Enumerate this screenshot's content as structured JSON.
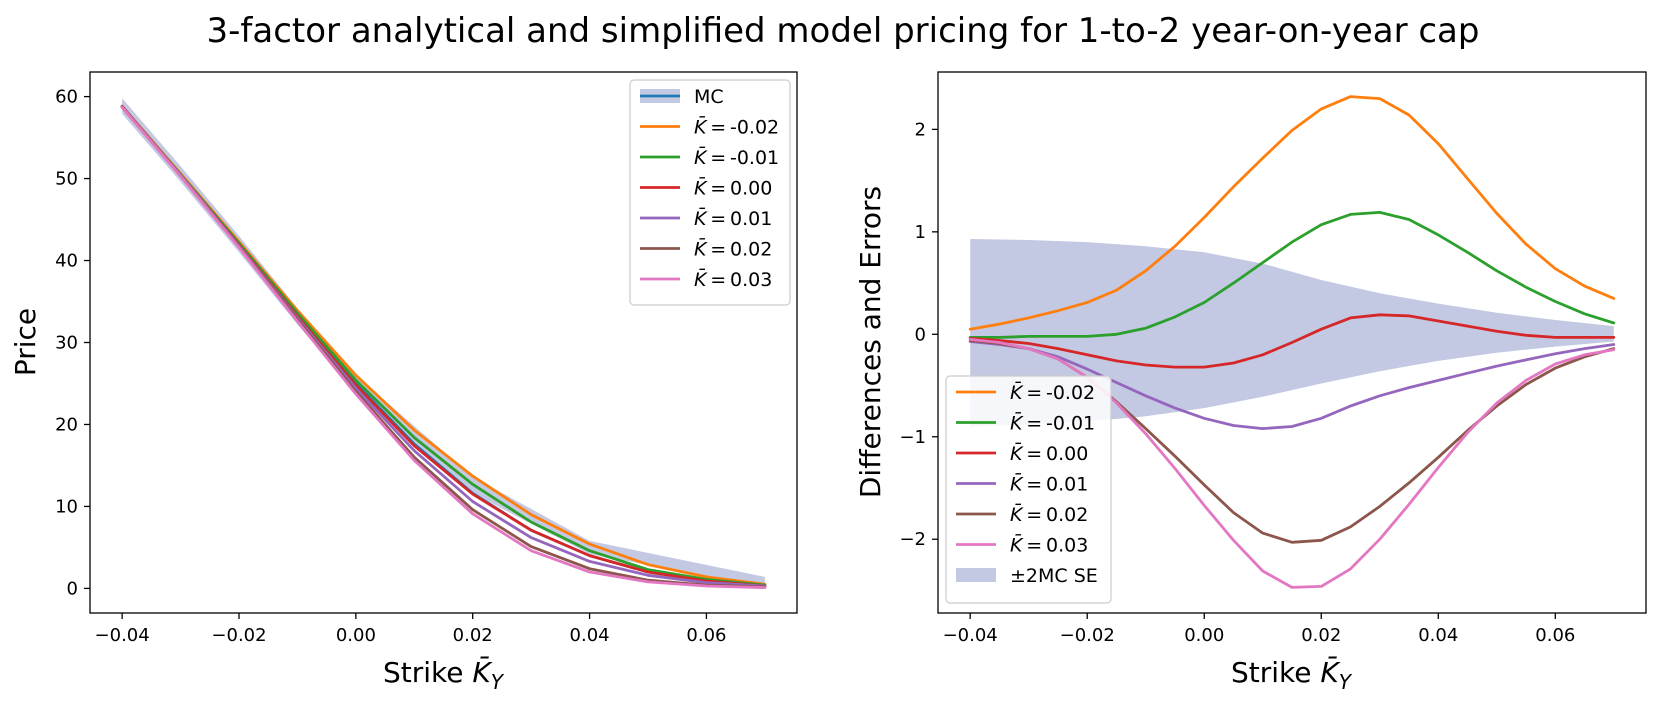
{
  "figure": {
    "suptitle": "3-factor analytical and simplified model pricing for 1-to-2 year-on-year cap"
  },
  "colors": {
    "mc": "#1f77b4",
    "band": "#c4c9e3",
    "orange": "#ff7f0e",
    "green": "#2ca02c",
    "red": "#d62728",
    "purple": "#9467bd",
    "brown": "#8c564b",
    "pink": "#e377c2"
  },
  "chart_data": [
    {
      "type": "line",
      "xlabel": "Strike K̄_Y",
      "xlabel_main": "Strike ",
      "xlabel_sym": "K̄",
      "xlabel_sub": "Y",
      "ylabel": "Price",
      "xlim": [
        -0.0455,
        0.0755
      ],
      "ylim": [
        -3,
        63
      ],
      "xticks": [
        -0.04,
        -0.02,
        0.0,
        0.02,
        0.04,
        0.06
      ],
      "xtick_labels": [
        "−0.04",
        "−0.02",
        "0.00",
        "0.02",
        "0.04",
        "0.06"
      ],
      "yticks": [
        0,
        10,
        20,
        30,
        40,
        50,
        60
      ],
      "ytick_labels": [
        "0",
        "10",
        "20",
        "30",
        "40",
        "50",
        "60"
      ],
      "legend_position": "top-right",
      "band": {
        "name": "MC",
        "x": [
          -0.04,
          -0.03,
          -0.02,
          -0.01,
          0.0,
          0.02,
          0.04,
          0.07
        ],
        "upper": [
          59.8,
          51.5,
          43.0,
          34.2,
          26.0,
          13.6,
          5.8,
          1.4
        ],
        "lower": [
          57.9,
          49.6,
          41.0,
          32.2,
          24.0,
          11.6,
          4.2,
          0.2
        ]
      },
      "series": [
        {
          "name": "MC",
          "color_key": "mc",
          "x": [
            -0.04,
            -0.03,
            -0.02,
            -0.01,
            0.0,
            0.01,
            0.02,
            0.03,
            0.04,
            0.05,
            0.06,
            0.07
          ],
          "y": [
            58.8,
            50.5,
            42.1,
            33.3,
            25.0,
            17.6,
            11.6,
            7.1,
            4.0,
            2.0,
            1.0,
            0.4
          ]
        },
        {
          "name": "K̄ = -0.02",
          "label_value": "-0.02",
          "color_key": "orange",
          "x": [
            -0.04,
            -0.03,
            -0.02,
            -0.01,
            0.0,
            0.01,
            0.02,
            0.03,
            0.04,
            0.05,
            0.06,
            0.07
          ],
          "y": [
            58.8,
            50.6,
            42.3,
            33.9,
            26.0,
            19.3,
            13.7,
            9.0,
            5.4,
            2.9,
            1.4,
            0.5
          ]
        },
        {
          "name": "K̄ = -0.01",
          "label_value": "-0.01",
          "color_key": "green",
          "x": [
            -0.04,
            -0.03,
            -0.02,
            -0.01,
            0.0,
            0.01,
            0.02,
            0.03,
            0.04,
            0.05,
            0.06,
            0.07
          ],
          "y": [
            58.8,
            50.5,
            42.1,
            33.6,
            25.4,
            18.4,
            12.7,
            8.1,
            4.6,
            2.3,
            1.1,
            0.4
          ]
        },
        {
          "name": "K̄ = 0.00",
          "label_value": "0.00",
          "color_key": "red",
          "x": [
            -0.04,
            -0.03,
            -0.02,
            -0.01,
            0.0,
            0.01,
            0.02,
            0.03,
            0.04,
            0.05,
            0.06,
            0.07
          ],
          "y": [
            58.8,
            50.4,
            41.9,
            33.2,
            24.8,
            17.4,
            11.5,
            7.1,
            4.0,
            2.0,
            0.9,
            0.3
          ]
        },
        {
          "name": "K̄ = 0.01",
          "label_value": "0.01",
          "color_key": "purple",
          "x": [
            -0.04,
            -0.03,
            -0.02,
            -0.01,
            0.0,
            0.01,
            0.02,
            0.03,
            0.04,
            0.05,
            0.06,
            0.07
          ],
          "y": [
            58.7,
            50.4,
            41.8,
            33.0,
            24.4,
            16.8,
            10.6,
            6.2,
            3.3,
            1.6,
            0.7,
            0.3
          ]
        },
        {
          "name": "K̄ = 0.02",
          "label_value": "0.02",
          "color_key": "brown",
          "x": [
            -0.04,
            -0.03,
            -0.02,
            -0.01,
            0.0,
            0.01,
            0.02,
            0.03,
            0.04,
            0.05,
            0.06,
            0.07
          ],
          "y": [
            58.7,
            50.3,
            41.7,
            32.8,
            24.0,
            16.0,
            9.6,
            5.1,
            2.4,
            1.0,
            0.4,
            0.2
          ]
        },
        {
          "name": "K̄ = 0.03",
          "label_value": "0.03",
          "color_key": "pink",
          "x": [
            -0.04,
            -0.03,
            -0.02,
            -0.01,
            0.0,
            0.01,
            0.02,
            0.03,
            0.04,
            0.05,
            0.06,
            0.07
          ],
          "y": [
            58.7,
            50.3,
            41.6,
            32.6,
            23.7,
            15.6,
            9.1,
            4.6,
            2.0,
            0.8,
            0.3,
            0.1
          ]
        }
      ]
    },
    {
      "type": "line",
      "xlabel": "Strike K̄_Y",
      "xlabel_main": "Strike ",
      "xlabel_sym": "K̄",
      "xlabel_sub": "Y",
      "ylabel": "Differences and Errors",
      "xlim": [
        -0.0455,
        0.0755
      ],
      "ylim": [
        -2.72,
        2.56
      ],
      "xticks": [
        -0.04,
        -0.02,
        0.0,
        0.02,
        0.04,
        0.06
      ],
      "xtick_labels": [
        "−0.04",
        "−0.02",
        "0.00",
        "0.02",
        "0.04",
        "0.06"
      ],
      "yticks": [
        -2,
        -1,
        0,
        1,
        2
      ],
      "ytick_labels": [
        "−2",
        "−1",
        "0",
        "1",
        "2"
      ],
      "legend_position": "lower-left",
      "band": {
        "name": "±2MC SE",
        "x": [
          -0.04,
          -0.03,
          -0.02,
          -0.01,
          0.0,
          0.01,
          0.02,
          0.03,
          0.04,
          0.05,
          0.06,
          0.07
        ],
        "upper": [
          0.93,
          0.92,
          0.9,
          0.86,
          0.8,
          0.69,
          0.53,
          0.4,
          0.3,
          0.21,
          0.14,
          0.08
        ],
        "lower": [
          -0.9,
          -0.88,
          -0.85,
          -0.8,
          -0.72,
          -0.61,
          -0.48,
          -0.36,
          -0.26,
          -0.18,
          -0.12,
          -0.07
        ]
      },
      "series": [
        {
          "name": "K̄ = -0.02",
          "label_value": "-0.02",
          "color_key": "orange",
          "x": [
            -0.04,
            -0.035,
            -0.03,
            -0.025,
            -0.02,
            -0.015,
            -0.01,
            -0.005,
            0.0,
            0.005,
            0.01,
            0.015,
            0.02,
            0.025,
            0.03,
            0.035,
            0.04,
            0.045,
            0.05,
            0.055,
            0.06,
            0.065,
            0.07
          ],
          "y": [
            0.05,
            0.1,
            0.16,
            0.23,
            0.31,
            0.43,
            0.62,
            0.86,
            1.14,
            1.44,
            1.72,
            1.99,
            2.2,
            2.32,
            2.3,
            2.14,
            1.86,
            1.52,
            1.18,
            0.88,
            0.64,
            0.47,
            0.35
          ]
        },
        {
          "name": "K̄ = -0.01",
          "label_value": "-0.01",
          "color_key": "green",
          "x": [
            -0.04,
            -0.035,
            -0.03,
            -0.025,
            -0.02,
            -0.015,
            -0.01,
            -0.005,
            0.0,
            0.005,
            0.01,
            0.015,
            0.02,
            0.025,
            0.03,
            0.035,
            0.04,
            0.045,
            0.05,
            0.055,
            0.06,
            0.065,
            0.07
          ],
          "y": [
            -0.03,
            -0.03,
            -0.02,
            -0.02,
            -0.02,
            0.0,
            0.06,
            0.17,
            0.31,
            0.5,
            0.7,
            0.9,
            1.07,
            1.17,
            1.19,
            1.12,
            0.97,
            0.8,
            0.62,
            0.46,
            0.32,
            0.2,
            0.11
          ]
        },
        {
          "name": "K̄ = 0.00",
          "label_value": "0.00",
          "color_key": "red",
          "x": [
            -0.04,
            -0.035,
            -0.03,
            -0.025,
            -0.02,
            -0.015,
            -0.01,
            -0.005,
            0.0,
            0.005,
            0.01,
            0.015,
            0.02,
            0.025,
            0.03,
            0.035,
            0.04,
            0.045,
            0.05,
            0.055,
            0.06,
            0.065,
            0.07
          ],
          "y": [
            -0.04,
            -0.06,
            -0.09,
            -0.14,
            -0.2,
            -0.26,
            -0.3,
            -0.32,
            -0.32,
            -0.28,
            -0.2,
            -0.08,
            0.05,
            0.16,
            0.19,
            0.18,
            0.13,
            0.08,
            0.03,
            -0.01,
            -0.03,
            -0.03,
            -0.03
          ]
        },
        {
          "name": "K̄ = 0.01",
          "label_value": "0.01",
          "color_key": "purple",
          "x": [
            -0.04,
            -0.035,
            -0.03,
            -0.025,
            -0.02,
            -0.015,
            -0.01,
            -0.005,
            0.0,
            0.005,
            0.01,
            0.015,
            0.02,
            0.025,
            0.03,
            0.035,
            0.04,
            0.045,
            0.05,
            0.055,
            0.06,
            0.065,
            0.07
          ],
          "y": [
            -0.07,
            -0.1,
            -0.14,
            -0.22,
            -0.34,
            -0.47,
            -0.6,
            -0.72,
            -0.82,
            -0.89,
            -0.92,
            -0.9,
            -0.82,
            -0.7,
            -0.6,
            -0.52,
            -0.45,
            -0.38,
            -0.31,
            -0.25,
            -0.19,
            -0.14,
            -0.1
          ]
        },
        {
          "name": "K̄ = 0.02",
          "label_value": "0.02",
          "color_key": "brown",
          "x": [
            -0.04,
            -0.035,
            -0.03,
            -0.025,
            -0.02,
            -0.015,
            -0.01,
            -0.005,
            0.0,
            0.005,
            0.01,
            0.015,
            0.02,
            0.025,
            0.03,
            0.035,
            0.04,
            0.045,
            0.05,
            0.055,
            0.06,
            0.065,
            0.07
          ],
          "y": [
            -0.06,
            -0.09,
            -0.14,
            -0.24,
            -0.42,
            -0.66,
            -0.92,
            -1.19,
            -1.47,
            -1.74,
            -1.94,
            -2.03,
            -2.01,
            -1.88,
            -1.68,
            -1.45,
            -1.2,
            -0.94,
            -0.7,
            -0.49,
            -0.33,
            -0.22,
            -0.14
          ]
        },
        {
          "name": "K̄ = 0.03",
          "label_value": "0.03",
          "color_key": "pink",
          "x": [
            -0.04,
            -0.035,
            -0.03,
            -0.025,
            -0.02,
            -0.015,
            -0.01,
            -0.005,
            0.0,
            0.005,
            0.01,
            0.015,
            0.02,
            0.025,
            0.03,
            0.035,
            0.04,
            0.045,
            0.05,
            0.055,
            0.06,
            0.065,
            0.07
          ],
          "y": [
            -0.05,
            -0.08,
            -0.14,
            -0.24,
            -0.42,
            -0.67,
            -0.97,
            -1.31,
            -1.67,
            -2.01,
            -2.31,
            -2.47,
            -2.46,
            -2.29,
            -2.0,
            -1.66,
            -1.3,
            -0.96,
            -0.67,
            -0.45,
            -0.29,
            -0.2,
            -0.15
          ]
        }
      ]
    }
  ]
}
